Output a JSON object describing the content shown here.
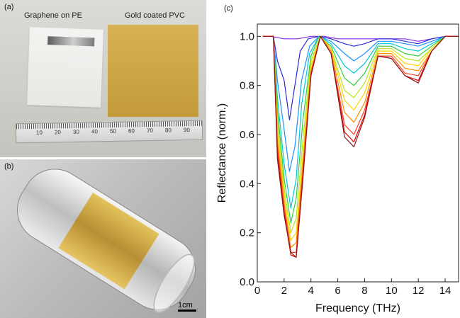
{
  "panels": {
    "a": {
      "label": "(a)",
      "caption_left": "Graphene on PE",
      "caption_right": "Gold coated PVC",
      "ruler_numbers": [
        "10",
        "20",
        "30",
        "40",
        "50",
        "60",
        "70",
        "80",
        "90"
      ]
    },
    "b": {
      "label": "(b)",
      "scale_bar": "1cm"
    },
    "c": {
      "label": "(c)"
    }
  },
  "chart_data": {
    "type": "line",
    "xlabel": "Frequency (THz)",
    "ylabel": "Reflectance (norm.)",
    "xlim": [
      0,
      15
    ],
    "ylim": [
      0.0,
      1.05
    ],
    "xticks": [
      0,
      2,
      4,
      6,
      8,
      10,
      12,
      14
    ],
    "yticks": [
      0.0,
      0.2,
      0.4,
      0.6,
      0.8,
      1.0
    ],
    "ytick_labels": [
      "0.0",
      "0.2",
      "0.4",
      "0.6",
      "0.8",
      "1.0"
    ],
    "grid": false,
    "legend": false,
    "series": [
      {
        "color": "#8a2be2",
        "x": [
          0.4,
          1.0,
          2.0,
          3.0,
          4.0,
          5.0,
          6.0,
          7.0,
          8.0,
          9.0,
          10.0,
          11.0,
          12.0,
          13.0,
          14.0,
          15.0
        ],
        "y": [
          1.0,
          1.0,
          0.99,
          0.99,
          1.0,
          1.0,
          0.99,
          0.99,
          0.99,
          0.99,
          0.99,
          0.99,
          0.98,
          0.99,
          1.0,
          1.0
        ]
      },
      {
        "color": "#2a2ad8",
        "x": [
          0.4,
          1.2,
          1.5,
          2.0,
          2.4,
          2.8,
          3.2,
          3.8,
          4.6,
          5.5,
          6.5,
          7.2,
          8.0,
          9.0,
          10.0,
          11.0,
          12.0,
          13.0,
          14.0,
          15.0
        ],
        "y": [
          1.0,
          1.0,
          0.9,
          0.82,
          0.66,
          0.8,
          0.94,
          0.99,
          1.0,
          0.99,
          0.97,
          0.96,
          0.97,
          0.99,
          0.99,
          0.98,
          0.97,
          0.99,
          1.0,
          1.0
        ]
      },
      {
        "color": "#1e90ff",
        "x": [
          0.4,
          1.2,
          1.5,
          2.0,
          2.4,
          2.8,
          3.3,
          3.9,
          4.6,
          5.5,
          6.5,
          7.2,
          8.0,
          9.0,
          10.0,
          11.0,
          12.0,
          13.0,
          14.0,
          15.0
        ],
        "y": [
          1.0,
          1.0,
          0.82,
          0.62,
          0.45,
          0.55,
          0.82,
          0.96,
          1.0,
          0.98,
          0.93,
          0.9,
          0.93,
          0.98,
          0.98,
          0.97,
          0.96,
          0.98,
          1.0,
          1.0
        ]
      },
      {
        "color": "#00c8d8",
        "x": [
          0.4,
          1.2,
          1.5,
          2.0,
          2.5,
          2.9,
          3.3,
          3.9,
          4.6,
          5.5,
          6.5,
          7.2,
          8.0,
          9.0,
          10.0,
          11.0,
          12.0,
          13.0,
          14.0,
          15.0
        ],
        "y": [
          1.0,
          1.0,
          0.75,
          0.48,
          0.3,
          0.42,
          0.72,
          0.93,
          1.0,
          0.97,
          0.88,
          0.85,
          0.89,
          0.97,
          0.97,
          0.95,
          0.94,
          0.97,
          1.0,
          1.0
        ]
      },
      {
        "color": "#2ecc40",
        "x": [
          0.4,
          1.2,
          1.5,
          2.0,
          2.5,
          2.9,
          3.4,
          4.0,
          4.6,
          5.5,
          6.5,
          7.2,
          8.0,
          9.0,
          10.0,
          11.0,
          12.0,
          13.0,
          14.0,
          15.0
        ],
        "y": [
          1.0,
          1.0,
          0.7,
          0.42,
          0.24,
          0.34,
          0.66,
          0.92,
          1.0,
          0.96,
          0.83,
          0.8,
          0.85,
          0.96,
          0.96,
          0.93,
          0.92,
          0.96,
          1.0,
          1.0
        ]
      },
      {
        "color": "#b5e61d",
        "x": [
          0.4,
          1.2,
          1.5,
          2.0,
          2.5,
          2.9,
          3.4,
          4.0,
          4.7,
          5.5,
          6.5,
          7.2,
          8.0,
          9.0,
          10.0,
          11.0,
          12.0,
          13.0,
          14.0,
          15.0
        ],
        "y": [
          1.0,
          1.0,
          0.66,
          0.38,
          0.2,
          0.26,
          0.58,
          0.9,
          1.0,
          0.95,
          0.78,
          0.75,
          0.81,
          0.95,
          0.95,
          0.91,
          0.9,
          0.95,
          1.0,
          1.0
        ]
      },
      {
        "color": "#ffd400",
        "x": [
          0.4,
          1.2,
          1.5,
          2.0,
          2.5,
          2.9,
          3.4,
          4.0,
          4.7,
          5.5,
          6.5,
          7.2,
          8.0,
          9.0,
          10.0,
          11.0,
          12.0,
          13.0,
          14.0,
          15.0
        ],
        "y": [
          1.0,
          1.0,
          0.62,
          0.35,
          0.17,
          0.2,
          0.52,
          0.88,
          1.0,
          0.95,
          0.74,
          0.7,
          0.77,
          0.94,
          0.94,
          0.89,
          0.88,
          0.95,
          1.0,
          1.0
        ]
      },
      {
        "color": "#ff8c00",
        "x": [
          0.4,
          1.2,
          1.5,
          2.0,
          2.5,
          2.9,
          3.4,
          4.0,
          4.7,
          5.5,
          6.5,
          7.2,
          8.0,
          9.0,
          10.0,
          11.0,
          12.0,
          13.0,
          14.0,
          15.0
        ],
        "y": [
          1.0,
          1.0,
          0.58,
          0.32,
          0.14,
          0.16,
          0.48,
          0.86,
          1.0,
          0.94,
          0.69,
          0.65,
          0.73,
          0.93,
          0.93,
          0.87,
          0.86,
          0.94,
          1.0,
          1.0
        ]
      },
      {
        "color": "#ff3b1f",
        "x": [
          0.4,
          1.2,
          1.5,
          2.0,
          2.5,
          2.9,
          3.4,
          4.0,
          4.7,
          5.5,
          6.5,
          7.2,
          8.0,
          9.0,
          10.0,
          11.0,
          12.0,
          13.0,
          14.0,
          15.0
        ],
        "y": [
          1.0,
          1.0,
          0.55,
          0.3,
          0.12,
          0.12,
          0.45,
          0.85,
          1.0,
          0.93,
          0.64,
          0.6,
          0.7,
          0.92,
          0.92,
          0.85,
          0.84,
          0.94,
          1.0,
          1.0
        ]
      },
      {
        "color": "#e00000",
        "x": [
          0.4,
          1.2,
          1.5,
          2.0,
          2.5,
          2.9,
          3.4,
          4.0,
          4.7,
          5.5,
          6.5,
          7.2,
          8.0,
          9.0,
          10.0,
          11.0,
          12.0,
          13.0,
          14.0,
          15.0
        ],
        "y": [
          1.0,
          1.0,
          0.52,
          0.28,
          0.11,
          0.1,
          0.43,
          0.84,
          1.0,
          0.93,
          0.61,
          0.57,
          0.68,
          0.92,
          0.91,
          0.84,
          0.82,
          0.94,
          1.0,
          1.0
        ]
      },
      {
        "color": "#8b1a1a",
        "x": [
          0.4,
          1.2,
          1.5,
          2.0,
          2.5,
          2.9,
          3.4,
          4.0,
          4.7,
          5.5,
          6.5,
          7.2,
          8.0,
          9.0,
          10.0,
          11.0,
          12.0,
          13.0,
          14.0,
          15.0
        ],
        "y": [
          1.0,
          1.0,
          0.5,
          0.27,
          0.12,
          0.1,
          0.42,
          0.84,
          1.0,
          0.93,
          0.59,
          0.55,
          0.67,
          0.92,
          0.91,
          0.84,
          0.81,
          0.94,
          1.0,
          1.0
        ]
      }
    ]
  }
}
